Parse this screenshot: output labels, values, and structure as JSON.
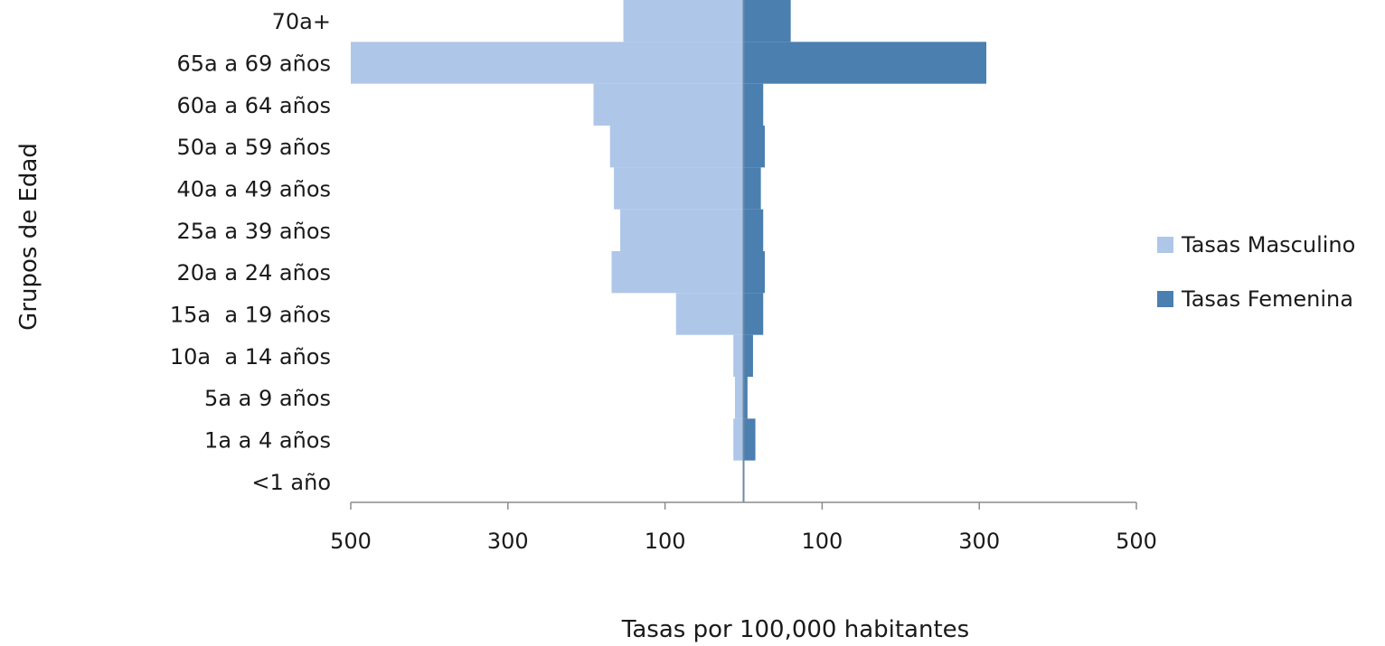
{
  "chart_data": {
    "type": "bar",
    "orientation": "horizontal",
    "layout": "population-pyramid",
    "categories": [
      "70a+",
      "65a a 69 años",
      "60a a 64 años",
      "50a a 59 años",
      "40a a 49 años",
      "25a a 39 años",
      "20a a 24 años",
      "15a  a 19 años",
      "10a  a 14 años",
      "5a a 9 años",
      "1a a 4 años",
      "<1 año"
    ],
    "series": [
      {
        "name": "Tasas Masculino",
        "side": "left",
        "color": "#aec7e8",
        "values": [
          153,
          500,
          191,
          170,
          165,
          157,
          168,
          86,
          13,
          11,
          13,
          1
        ]
      },
      {
        "name": "Tasas Femenina",
        "side": "right",
        "color": "#4a7fb0",
        "values": [
          60,
          309,
          25,
          27,
          22,
          25,
          27,
          25,
          12,
          5,
          15,
          1
        ]
      }
    ],
    "xlabel": "Tasas por 100,000 habitantes",
    "ylabel": "Grupos de Edad",
    "xlim": [
      -500,
      500
    ],
    "x_ticks": [
      "500",
      "300",
      "100",
      "100",
      "300",
      "500"
    ],
    "x_tick_values": [
      -500,
      -300,
      -100,
      100,
      300,
      500
    ],
    "grid": false,
    "legend_position": "right"
  }
}
